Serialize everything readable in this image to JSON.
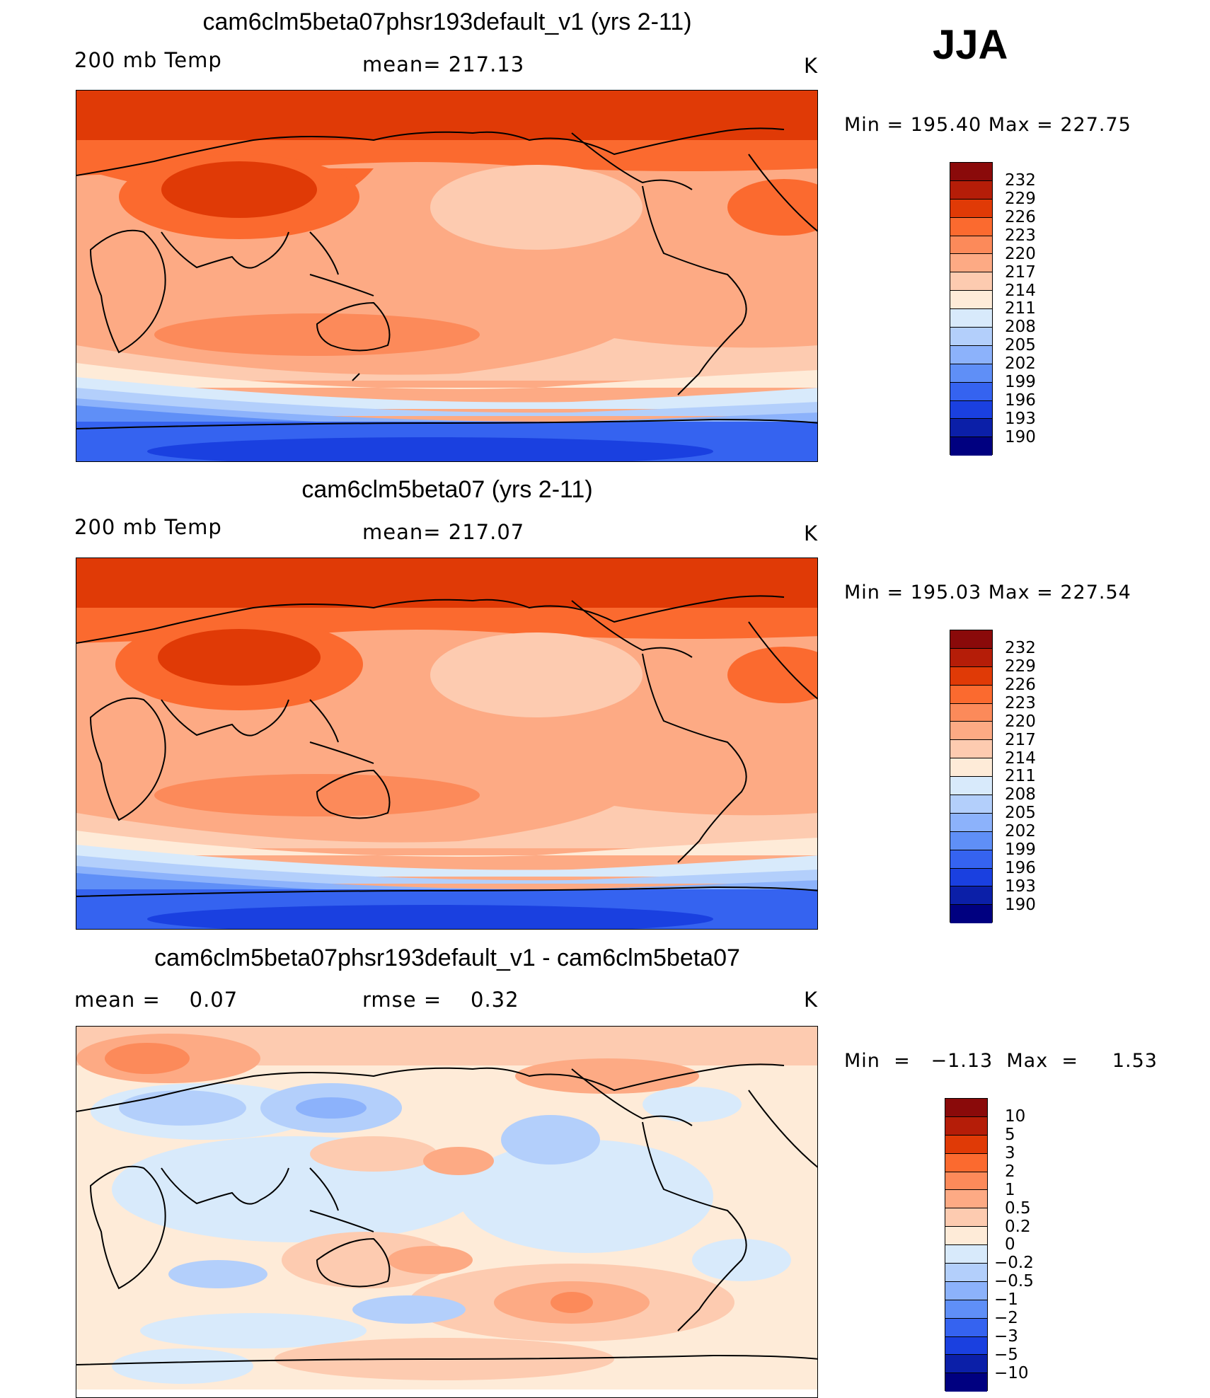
{
  "figure": {
    "season": "JJA",
    "panels": [
      {
        "title": "cam6clm5beta07phsr193default_v1 (yrs 2-11)",
        "left_label": "200 mb Temp",
        "center_label": "mean= 217.13",
        "units": "K",
        "minmax": "Min  =  195.40  Max  =  227.75",
        "colorbar": {
          "labels": [
            "232",
            "229",
            "226",
            "223",
            "220",
            "217",
            "214",
            "211",
            "208",
            "205",
            "202",
            "199",
            "196",
            "193",
            "190"
          ],
          "colors": [
            "#8a0a0a",
            "#b51d08",
            "#e03a06",
            "#fb6a2f",
            "#fc8a5a",
            "#fdaa84",
            "#fdcbb0",
            "#feebd8",
            "#d8eafb",
            "#b3cffb",
            "#8cb2fb",
            "#5f8ff7",
            "#3563f0",
            "#1a40e0",
            "#0b1fa8",
            "#000080"
          ]
        }
      },
      {
        "title": "cam6clm5beta07 (yrs 2-11)",
        "left_label": "200 mb Temp",
        "center_label": "mean= 217.07",
        "units": "K",
        "minmax": "Min  =  195.03  Max  =  227.54",
        "colorbar": {
          "labels": [
            "232",
            "229",
            "226",
            "223",
            "220",
            "217",
            "214",
            "211",
            "208",
            "205",
            "202",
            "199",
            "196",
            "193",
            "190"
          ],
          "colors": [
            "#8a0a0a",
            "#b51d08",
            "#e03a06",
            "#fb6a2f",
            "#fc8a5a",
            "#fdaa84",
            "#fdcbb0",
            "#feebd8",
            "#d8eafb",
            "#b3cffb",
            "#8cb2fb",
            "#5f8ff7",
            "#3563f0",
            "#1a40e0",
            "#0b1fa8",
            "#000080"
          ]
        }
      },
      {
        "title": "cam6clm5beta07phsr193default_v1 - cam6clm5beta07",
        "left_label": "mean =    0.07",
        "center_label": "rmse =    0.32",
        "units": "K",
        "minmax": "Min  =   −1.13  Max  =     1.53",
        "colorbar": {
          "labels": [
            "10",
            "5",
            "3",
            "2",
            "1",
            "0.5",
            "0.2",
            "0",
            "−0.2",
            "−0.5",
            "−1",
            "−2",
            "−3",
            "−5",
            "−10"
          ],
          "colors": [
            "#8a0a0a",
            "#b51d08",
            "#e03a06",
            "#fb6a2f",
            "#fc8a5a",
            "#fdaa84",
            "#fdcbb0",
            "#feebd8",
            "#d8eafb",
            "#b3cffb",
            "#8cb2fb",
            "#5f8ff7",
            "#3563f0",
            "#1a40e0",
            "#0b1fa8",
            "#000080"
          ]
        }
      }
    ]
  }
}
